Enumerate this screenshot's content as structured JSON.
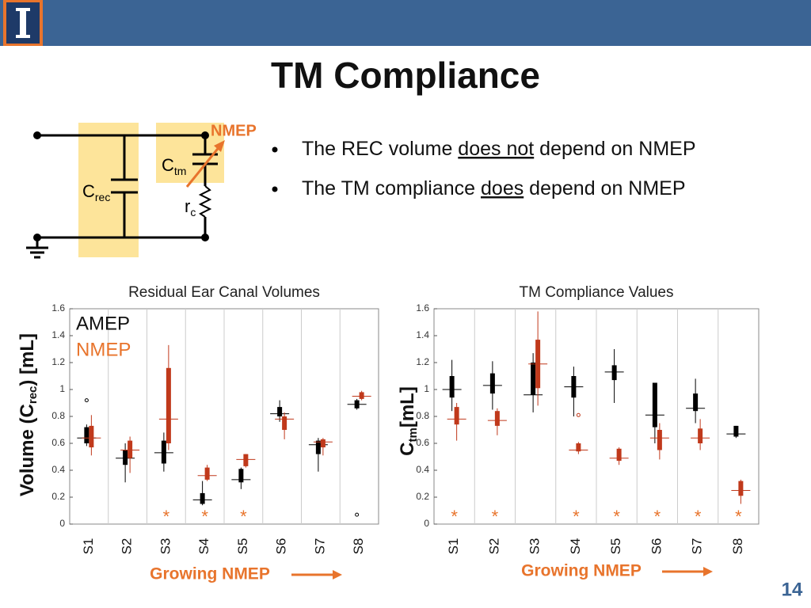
{
  "slide": {
    "title": "TM Compliance",
    "page_number": "14",
    "bullets": [
      [
        "The REC volume ",
        "does not",
        " depend on NMEP"
      ],
      [
        "The TM compliance ",
        "does",
        " depend on NMEP"
      ]
    ],
    "circuit": {
      "nmep": "NMEP",
      "ctm": [
        "C",
        "tm"
      ],
      "crec": [
        "C",
        "rec"
      ],
      "rc": [
        "r",
        "c"
      ]
    }
  },
  "chart_data": [
    {
      "type": "box",
      "title": "Residual Ear Canal Volumes",
      "ylabel": [
        "Volume (C",
        "rec",
        ") [mL]"
      ],
      "xlabel": "Growing NMEP",
      "categories": [
        "S1",
        "S2",
        "S3",
        "S4",
        "S5",
        "S6",
        "S7",
        "S8"
      ],
      "significance": [
        null,
        null,
        "*",
        "*",
        "*",
        null,
        null,
        null
      ],
      "ylim": [
        0,
        1.6
      ],
      "yticks": [
        0,
        0.2,
        0.4,
        0.6,
        0.8,
        1,
        1.2,
        1.4,
        1.6
      ],
      "legend": true,
      "series": [
        {
          "name": "AMEP",
          "color": "#000000",
          "stats": [
            {
              "median": 0.64,
              "q1": 0.6,
              "q3": 0.72,
              "whisker_low": 0.58,
              "whisker_high": 0.74,
              "outliers": [
                0.92
              ]
            },
            {
              "median": 0.49,
              "q1": 0.44,
              "q3": 0.55,
              "whisker_low": 0.31,
              "whisker_high": 0.6,
              "outliers": []
            },
            {
              "median": 0.53,
              "q1": 0.45,
              "q3": 0.62,
              "whisker_low": 0.39,
              "whisker_high": 0.68,
              "outliers": []
            },
            {
              "median": 0.18,
              "q1": 0.15,
              "q3": 0.23,
              "whisker_low": 0.14,
              "whisker_high": 0.32,
              "outliers": []
            },
            {
              "median": 0.33,
              "q1": 0.31,
              "q3": 0.41,
              "whisker_low": 0.26,
              "whisker_high": 0.42,
              "outliers": []
            },
            {
              "median": 0.82,
              "q1": 0.8,
              "q3": 0.87,
              "whisker_low": 0.76,
              "whisker_high": 0.92,
              "outliers": []
            },
            {
              "median": 0.59,
              "q1": 0.52,
              "q3": 0.62,
              "whisker_low": 0.39,
              "whisker_high": 0.64,
              "outliers": []
            },
            {
              "median": 0.89,
              "q1": 0.86,
              "q3": 0.92,
              "whisker_low": 0.85,
              "whisker_high": 0.93,
              "outliers": [
                0.07
              ]
            }
          ]
        },
        {
          "name": "NMEP",
          "color": "#c0391b",
          "stats": [
            {
              "median": 0.64,
              "q1": 0.57,
              "q3": 0.73,
              "whisker_low": 0.51,
              "whisker_high": 0.81,
              "outliers": []
            },
            {
              "median": 0.55,
              "q1": 0.49,
              "q3": 0.62,
              "whisker_low": 0.38,
              "whisker_high": 0.65,
              "outliers": []
            },
            {
              "median": 0.78,
              "q1": 0.6,
              "q3": 1.16,
              "whisker_low": 0.55,
              "whisker_high": 1.33,
              "outliers": []
            },
            {
              "median": 0.36,
              "q1": 0.33,
              "q3": 0.42,
              "whisker_low": 0.32,
              "whisker_high": 0.44,
              "outliers": []
            },
            {
              "median": 0.48,
              "q1": 0.43,
              "q3": 0.52,
              "whisker_low": 0.42,
              "whisker_high": 0.52,
              "outliers": []
            },
            {
              "median": 0.78,
              "q1": 0.7,
              "q3": 0.8,
              "whisker_low": 0.63,
              "whisker_high": 0.83,
              "outliers": []
            },
            {
              "median": 0.61,
              "q1": 0.57,
              "q3": 0.63,
              "whisker_low": 0.51,
              "whisker_high": 0.64,
              "outliers": []
            },
            {
              "median": 0.95,
              "q1": 0.93,
              "q3": 0.98,
              "whisker_low": 0.92,
              "whisker_high": 0.99,
              "outliers": []
            }
          ]
        }
      ]
    },
    {
      "type": "box",
      "title": "TM Compliance Values",
      "ylabel": [
        "C",
        "tm",
        "[mL]"
      ],
      "xlabel": "Growing NMEP",
      "categories": [
        "S1",
        "S2",
        "S3",
        "S4",
        "S5",
        "S6",
        "S7",
        "S8"
      ],
      "significance": [
        "*",
        "*",
        null,
        "*",
        "*",
        "*",
        "*",
        "*"
      ],
      "ylim": [
        0,
        1.6
      ],
      "yticks": [
        0,
        0.2,
        0.4,
        0.6,
        0.8,
        1,
        1.2,
        1.4,
        1.6
      ],
      "legend": false,
      "series": [
        {
          "color": "#000000",
          "stats": [
            {
              "median": 1.0,
              "q1": 0.94,
              "q3": 1.1,
              "whisker_low": 0.84,
              "whisker_high": 1.22,
              "outliers": []
            },
            {
              "median": 1.03,
              "q1": 0.97,
              "q3": 1.12,
              "whisker_low": 0.85,
              "whisker_high": 1.21,
              "outliers": []
            },
            {
              "median": 0.96,
              "q1": 0.96,
              "q3": 1.2,
              "whisker_low": 0.83,
              "whisker_high": 1.27,
              "outliers": []
            },
            {
              "median": 1.02,
              "q1": 0.94,
              "q3": 1.1,
              "whisker_low": 0.8,
              "whisker_high": 1.17,
              "outliers": []
            },
            {
              "median": 1.13,
              "q1": 1.07,
              "q3": 1.18,
              "whisker_low": 0.9,
              "whisker_high": 1.3,
              "outliers": []
            },
            {
              "median": 0.81,
              "q1": 0.72,
              "q3": 1.05,
              "whisker_low": 0.6,
              "whisker_high": 1.05,
              "outliers": []
            },
            {
              "median": 0.86,
              "q1": 0.84,
              "q3": 0.97,
              "whisker_low": 0.75,
              "whisker_high": 1.08,
              "outliers": []
            },
            {
              "median": 0.67,
              "q1": 0.65,
              "q3": 0.73,
              "whisker_low": 0.64,
              "whisker_high": 0.73,
              "outliers": []
            }
          ]
        },
        {
          "color": "#c0391b",
          "stats": [
            {
              "median": 0.78,
              "q1": 0.74,
              "q3": 0.87,
              "whisker_low": 0.62,
              "whisker_high": 0.9,
              "outliers": []
            },
            {
              "median": 0.77,
              "q1": 0.73,
              "q3": 0.84,
              "whisker_low": 0.66,
              "whisker_high": 0.86,
              "outliers": []
            },
            {
              "median": 1.19,
              "q1": 1.01,
              "q3": 1.37,
              "whisker_low": 0.88,
              "whisker_high": 1.58,
              "outliers": []
            },
            {
              "median": 0.55,
              "q1": 0.54,
              "q3": 0.6,
              "whisker_low": 0.52,
              "whisker_high": 0.61,
              "outliers": [
                0.81
              ]
            },
            {
              "median": 0.49,
              "q1": 0.47,
              "q3": 0.56,
              "whisker_low": 0.44,
              "whisker_high": 0.57,
              "outliers": []
            },
            {
              "median": 0.64,
              "q1": 0.55,
              "q3": 0.7,
              "whisker_low": 0.48,
              "whisker_high": 0.75,
              "outliers": []
            },
            {
              "median": 0.64,
              "q1": 0.6,
              "q3": 0.71,
              "whisker_low": 0.55,
              "whisker_high": 0.78,
              "outliers": []
            },
            {
              "median": 0.25,
              "q1": 0.21,
              "q3": 0.32,
              "whisker_low": 0.15,
              "whisker_high": 0.33,
              "outliers": []
            }
          ]
        }
      ]
    }
  ]
}
